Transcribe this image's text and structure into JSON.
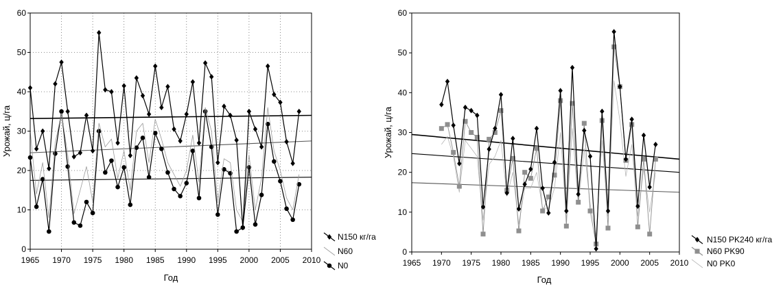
{
  "chart_data": [
    {
      "type": "line",
      "xlabel": "Год",
      "ylabel": "Урожай, ц/га",
      "xlim": [
        1965,
        2010
      ],
      "ylim": [
        0,
        60
      ],
      "xticks": [
        1965,
        1970,
        1975,
        1980,
        1985,
        1990,
        1995,
        2000,
        2005,
        2010
      ],
      "yticks": [
        0,
        10,
        20,
        30,
        40,
        50,
        60
      ],
      "grid": true,
      "legend_position": "bottom-right, outside plot",
      "series": [
        {
          "name": "N150 кг/га",
          "marker": "diamond",
          "color": "#000000",
          "x": [
            1965,
            1966,
            1967,
            1968,
            1969,
            1970,
            1971,
            1972,
            1973,
            1974,
            1975,
            1976,
            1977,
            1978,
            1979,
            1980,
            1981,
            1982,
            1983,
            1984,
            1985,
            1986,
            1987,
            1988,
            1989,
            1990,
            1991,
            1992,
            1993,
            1994,
            1995,
            1996,
            1997,
            1998,
            1999,
            2000,
            2001,
            2002,
            2003,
            2004,
            2005,
            2006,
            2007,
            2008
          ],
          "values": [
            41,
            25.5,
            30,
            20.5,
            42,
            47.5,
            35,
            23.5,
            24.5,
            34,
            25,
            55,
            40.5,
            40,
            27,
            41.5,
            23.8,
            43.5,
            39,
            34.3,
            46.5,
            36,
            41.3,
            30.5,
            27.5,
            34.3,
            42.5,
            27,
            47.3,
            43.8,
            22,
            36.3,
            34,
            27.7,
            5.5,
            35,
            30.5,
            26,
            46.5,
            39.3,
            37.3,
            27.3,
            21.8,
            35
          ],
          "trend": [
            33.2,
            34.0
          ]
        },
        {
          "name": "N60",
          "marker": "none",
          "color": "#9a9a9a",
          "x": [
            1965,
            1966,
            1967,
            1968,
            1969,
            1970,
            1971,
            1972,
            1973,
            1974,
            1975,
            1976,
            1977,
            1978,
            1979,
            1980,
            1981,
            1982,
            1983,
            1984,
            1985,
            1986,
            1987,
            1988,
            1989,
            1990,
            1991,
            1992,
            1993,
            1994,
            1995,
            1996,
            1997,
            1998,
            1999,
            2000,
            2001,
            2002,
            2003,
            2004,
            2005,
            2006,
            2007,
            2008
          ],
          "values": [
            30,
            14,
            22,
            8,
            27,
            34.5,
            24,
            9,
            15,
            21,
            12,
            32,
            26,
            28,
            18,
            25,
            15,
            30,
            32,
            22,
            33,
            28,
            22,
            19,
            16,
            20,
            29,
            17,
            36,
            30,
            12,
            23,
            22,
            10,
            7,
            24,
            10,
            18,
            36,
            25,
            20,
            13,
            10,
            19
          ],
          "trend": [
            24.5,
            27.5
          ]
        },
        {
          "name": "N0",
          "marker": "circle",
          "color": "#000000",
          "x": [
            1965,
            1966,
            1967,
            1968,
            1969,
            1970,
            1971,
            1972,
            1973,
            1974,
            1975,
            1976,
            1977,
            1978,
            1979,
            1980,
            1981,
            1982,
            1983,
            1984,
            1985,
            1986,
            1987,
            1988,
            1989,
            1990,
            1991,
            1992,
            1993,
            1994,
            1995,
            1996,
            1997,
            1998,
            1999,
            2000,
            2001,
            2002,
            2003,
            2004,
            2005,
            2006,
            2007,
            2008
          ],
          "values": [
            23.3,
            10.8,
            17.8,
            4.5,
            24.3,
            35,
            21,
            6.8,
            6,
            12,
            9.2,
            30,
            19.5,
            22.5,
            15.8,
            20.8,
            11.3,
            25.8,
            28.3,
            18.3,
            29.5,
            25.5,
            19.5,
            15.3,
            13.5,
            16.8,
            25,
            13,
            35,
            26,
            8.8,
            20.3,
            19.3,
            4.5,
            5.5,
            20.8,
            6.3,
            13.8,
            31.8,
            22.3,
            17.3,
            10.3,
            7.5,
            16.5
          ],
          "trend": [
            17.5,
            18.3
          ]
        }
      ]
    },
    {
      "type": "line",
      "xlabel": "Год",
      "ylabel": "Урожай, ц/га",
      "xlim": [
        1965,
        2010
      ],
      "ylim": [
        0,
        60
      ],
      "xticks": [
        1965,
        1970,
        1975,
        1980,
        1985,
        1990,
        1995,
        2000,
        2005,
        2010
      ],
      "yticks": [
        0,
        10,
        20,
        30,
        40,
        50,
        60
      ],
      "grid": false,
      "legend_position": "bottom-right, outside plot",
      "series": [
        {
          "name": "N150 PK240 кг/га",
          "marker": "diamond",
          "color": "#000000",
          "x": [
            1970,
            1971,
            1972,
            1973,
            1974,
            1975,
            1976,
            1977,
            1978,
            1979,
            1980,
            1981,
            1982,
            1983,
            1984,
            1985,
            1986,
            1987,
            1988,
            1989,
            1990,
            1991,
            1992,
            1993,
            1994,
            1995,
            1996,
            1997,
            1998,
            1999,
            2000,
            2001,
            2002,
            2003,
            2004,
            2005,
            2006
          ],
          "values": [
            37,
            42.8,
            31.8,
            22.2,
            36.3,
            35.5,
            34.3,
            11.3,
            25.8,
            31,
            39.5,
            14.8,
            28.5,
            10.8,
            17,
            20.8,
            31,
            16,
            9.8,
            22.5,
            40.5,
            10.3,
            46.3,
            14.5,
            30.5,
            24,
            0.8,
            35.3,
            10.3,
            55.3,
            41.5,
            23.3,
            33.3,
            11.5,
            29.3,
            16.3,
            27
          ],
          "trend": [
            29.5,
            23.3
          ]
        },
        {
          "name": "N60 PK90",
          "marker": "square",
          "color": "#8f8f8f",
          "x": [
            1970,
            1971,
            1972,
            1973,
            1974,
            1975,
            1976,
            1977,
            1978,
            1979,
            1980,
            1981,
            1982,
            1983,
            1984,
            1985,
            1986,
            1987,
            1988,
            1989,
            1990,
            1991,
            1992,
            1993,
            1994,
            1995,
            1996,
            1997,
            1998,
            1999,
            2000,
            2001,
            2002,
            2003,
            2004,
            2005,
            2006
          ],
          "values": [
            31,
            32,
            25,
            16.5,
            32.8,
            30,
            28.8,
            4.5,
            28.3,
            30,
            35.5,
            15.5,
            23.5,
            5.3,
            20,
            18.5,
            26,
            10.3,
            13.8,
            19.3,
            38,
            6.5,
            37.3,
            12.5,
            32.3,
            10.3,
            2,
            33,
            6,
            51.5,
            41.5,
            23,
            32,
            6.3,
            23.3,
            4.5,
            23.3
          ],
          "trend": [
            24.7,
            20.0
          ]
        },
        {
          "name": "N0 PK0",
          "marker": "none",
          "color": "#b5b5b5",
          "x": [
            1970,
            1971,
            1972,
            1973,
            1974,
            1975,
            1976,
            1977,
            1978,
            1979,
            1980,
            1981,
            1982,
            1983,
            1984,
            1985,
            1986,
            1987,
            1988,
            1989,
            1990,
            1991,
            1992,
            1993,
            1994,
            1995,
            1996,
            1997,
            1998,
            1999,
            2000,
            2001,
            2002,
            2003,
            2004,
            2005,
            2006
          ],
          "values": [
            27,
            29,
            24,
            15,
            28,
            26,
            24,
            8,
            22,
            24,
            28,
            14,
            20,
            7,
            16,
            16,
            20,
            11,
            11,
            16,
            30,
            8,
            31,
            12,
            26,
            12,
            4,
            28,
            9,
            43,
            33,
            19,
            27,
            9,
            21,
            10,
            20
          ],
          "trend": [
            17.4,
            15.0
          ]
        }
      ]
    }
  ]
}
